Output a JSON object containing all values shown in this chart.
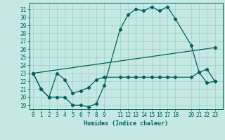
{
  "xlabel": "Humidex (Indice chaleur)",
  "bg_color": "#c5e8e3",
  "line_color": "#006060",
  "grid_color": "#9ecfca",
  "ylim": [
    18.5,
    31.8
  ],
  "yticks": [
    19,
    20,
    21,
    22,
    23,
    24,
    25,
    26,
    27,
    28,
    29,
    30,
    31
  ],
  "xticks": [
    0,
    1,
    2,
    3,
    4,
    5,
    6,
    7,
    8,
    9,
    11,
    12,
    13,
    14,
    15,
    16,
    17,
    18,
    20,
    21,
    22,
    23
  ],
  "xlim": [
    -0.5,
    24.0
  ],
  "series1_x": [
    0,
    1,
    2,
    3,
    4,
    5,
    6,
    7,
    8,
    9,
    11,
    12,
    13,
    14,
    15,
    16,
    17,
    18,
    20,
    21,
    22,
    23
  ],
  "series1_y": [
    23,
    21,
    20,
    20,
    20,
    19,
    19,
    18.8,
    19.2,
    21.5,
    28.5,
    30.3,
    31,
    30.8,
    31.3,
    30.8,
    31.3,
    29.8,
    26.5,
    23.1,
    23.5,
    22
  ],
  "series2_x": [
    0,
    1,
    2,
    3,
    4,
    5,
    6,
    7,
    8,
    9,
    11,
    12,
    13,
    14,
    15,
    16,
    17,
    18,
    20,
    21,
    22,
    23
  ],
  "series2_y": [
    23,
    21,
    20,
    23,
    22.2,
    20.5,
    20.8,
    21.2,
    22.2,
    22.5,
    22.5,
    22.5,
    22.5,
    22.5,
    22.5,
    22.5,
    22.5,
    22.5,
    22.5,
    23.1,
    21.8,
    22
  ],
  "series3_x": [
    0,
    23
  ],
  "series3_y": [
    23,
    26.2
  ]
}
